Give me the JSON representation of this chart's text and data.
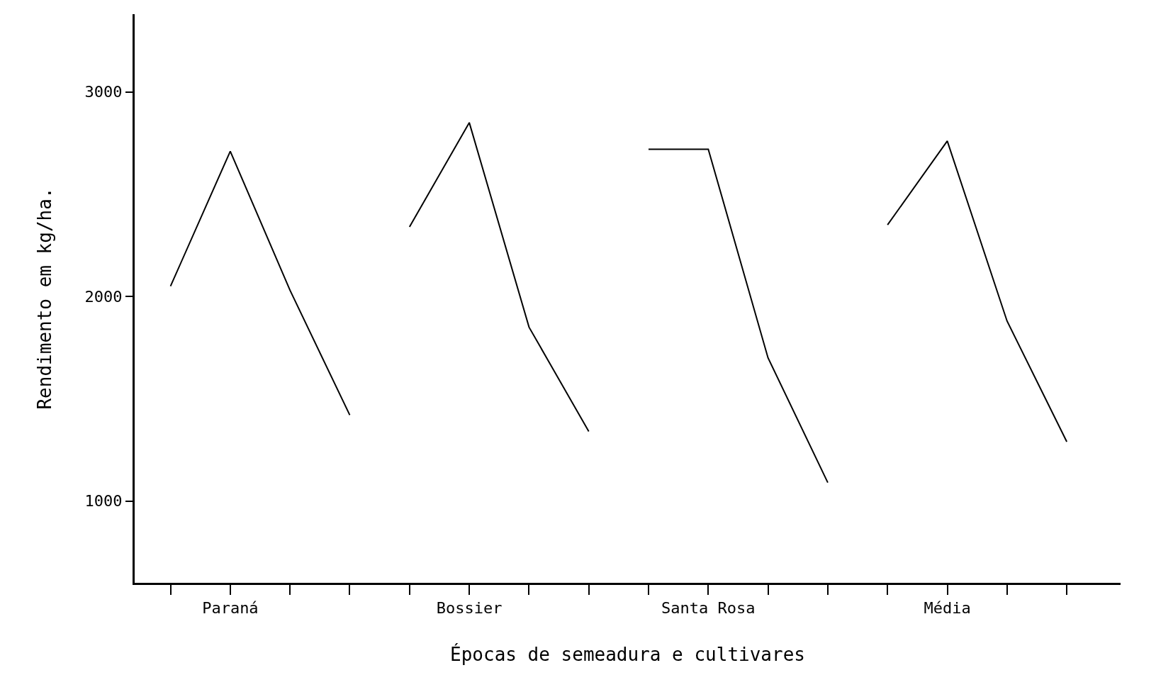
{
  "chart_data": {
    "type": "line",
    "xlabel": "Épocas de semeadura e cultivares",
    "ylabel": "Rendimento em kg/ha.",
    "categories": [
      null,
      "Paraná",
      null,
      null,
      null,
      "Bossier",
      null,
      null,
      null,
      "Santa Rosa",
      null,
      null,
      null,
      "Média",
      null,
      null
    ],
    "series": [
      {
        "color": "#000000",
        "values": [
          2050,
          2710,
          2030,
          1420,
          null,
          null,
          null,
          null,
          null,
          null,
          null,
          null,
          null,
          null,
          null,
          null
        ]
      },
      {
        "color": "#000000",
        "values": [
          null,
          null,
          null,
          null,
          2340,
          2850,
          1850,
          1340,
          null,
          null,
          null,
          null,
          null,
          null,
          null,
          null
        ]
      },
      {
        "color": "#000000",
        "values": [
          null,
          null,
          null,
          null,
          null,
          null,
          null,
          null,
          2720,
          2720,
          1700,
          1090,
          null,
          null,
          null,
          null
        ]
      },
      {
        "color": "#000000",
        "values": [
          null,
          null,
          null,
          null,
          null,
          null,
          null,
          null,
          null,
          null,
          null,
          null,
          2350,
          2760,
          1880,
          1290
        ]
      }
    ],
    "ylim": [
      600,
      3380
    ],
    "yticks": [
      1000,
      2000,
      3000
    ],
    "marker": "none",
    "line_style": "solid"
  }
}
